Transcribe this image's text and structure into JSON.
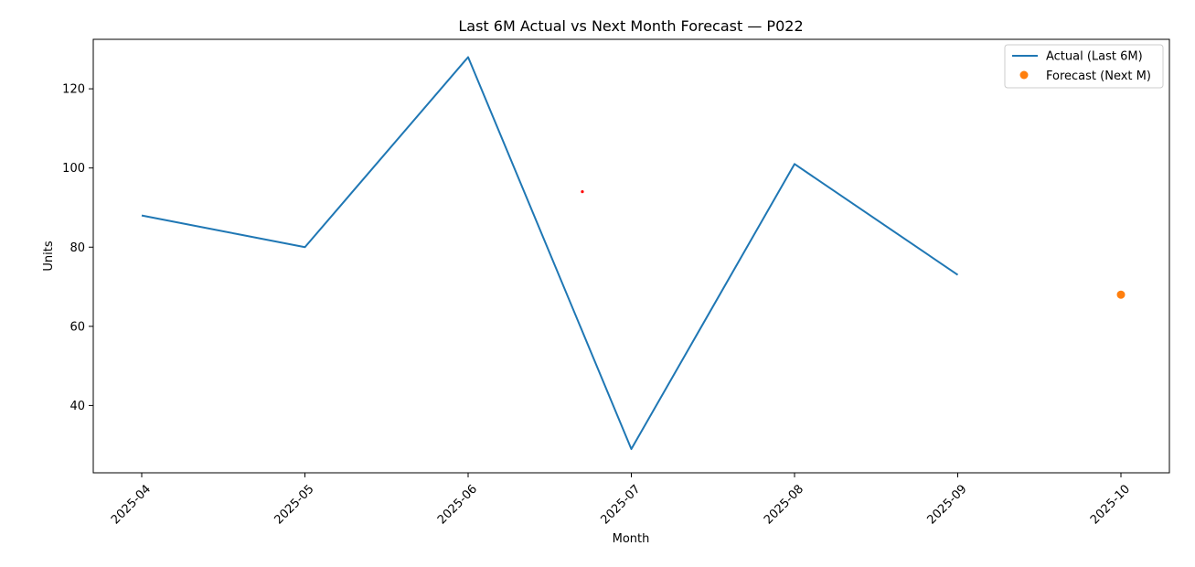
{
  "chart_data": {
    "type": "line",
    "title": "Last 6M Actual vs Next Month Forecast — P022",
    "xlabel": "Month",
    "ylabel": "Units",
    "x_ticks": [
      "2025-04",
      "2025-05",
      "2025-06",
      "2025-07",
      "2025-08",
      "2025-09",
      "2025-10"
    ],
    "y_ticks": [
      40,
      60,
      80,
      100,
      120
    ],
    "ylim": [
      23.0,
      132.5
    ],
    "grid": false,
    "legend_position": "top-right",
    "series": [
      {
        "name": "Actual (Last 6M)",
        "kind": "line",
        "color": "#1f77b4",
        "x": [
          "2025-04",
          "2025-05",
          "2025-06",
          "2025-07",
          "2025-08",
          "2025-09"
        ],
        "y": [
          88,
          80,
          128,
          29,
          101,
          73
        ]
      },
      {
        "name": "Forecast (Next M)",
        "kind": "scatter",
        "color": "#ff7f0e",
        "x": [
          "2025-10"
        ],
        "y": [
          68
        ]
      }
    ],
    "annotations": [
      {
        "x": "2025-06-22",
        "y": 94,
        "color": "#ff0000"
      }
    ]
  }
}
